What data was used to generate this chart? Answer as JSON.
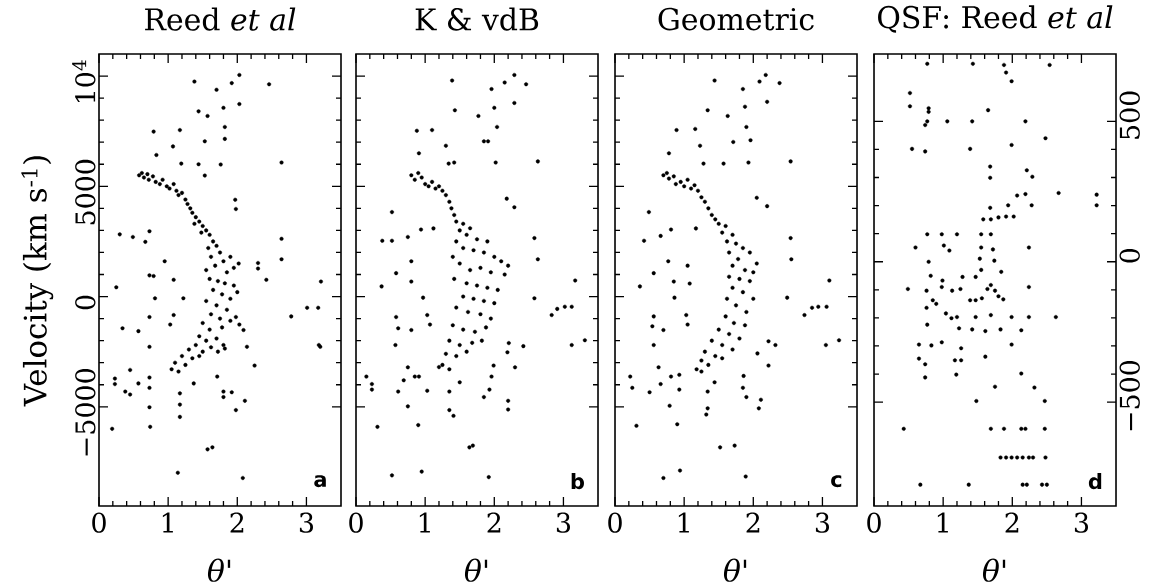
{
  "chart_data": [
    {
      "type": "scatter",
      "title": "Reed *et al*",
      "xlabel": "θ'",
      "ylabel": "Velocity (km s$^{-1}$)",
      "color": "#000000",
      "marker": "circle",
      "xlim": [
        0,
        3.5
      ],
      "xticks": [
        0,
        1,
        2,
        3
      ],
      "ylim": [
        -9500,
        11000
      ],
      "yticks": [
        {
          "value": -5000,
          "label": "−5000"
        },
        0,
        5000,
        {
          "value": 10000,
          "label": "10$^{4}$"
        }
      ],
      "annotations": [
        "a"
      ],
      "x": [
        1.38,
        1.92,
        2.03,
        2.46,
        1.7,
        2.03,
        1.44,
        1.57,
        1.8,
        0.79,
        1.17,
        1.82,
        1.53,
        1.82,
        1.07,
        0.83,
        2.64,
        1.19,
        1.44,
        1.76,
        1.53,
        1.97,
        1.98,
        0.3,
        0.49,
        0.67,
        0.73,
        2.64,
        2.64,
        2.3,
        2.3,
        2.42,
        0.25,
        0.95,
        0.79,
        0.73,
        1.08,
        0.81,
        1.22,
        0.73,
        1.08,
        0.34,
        0.57,
        0.73,
        1.03,
        3.21,
        3.01,
        3.17,
        2.78,
        3.18,
        3.2,
        1.98,
        2.09,
        2.03,
        2.14,
        2.25,
        1.82,
        0.23,
        0.23,
        0.45,
        0.38,
        0.45,
        0.57,
        0.73,
        0.73,
        0.73,
        0.19,
        0.74,
        1.17,
        1.17,
        1.17,
        1.37,
        1.71,
        1.8,
        1.8,
        1.92,
        2.11,
        1.98,
        1.57,
        1.64,
        1.14,
        2.08,
        0.58,
        0.62,
        0.65,
        0.7,
        0.72,
        0.78,
        0.82,
        0.88,
        0.92,
        0.98,
        1.02,
        1.08,
        1.12,
        1.15,
        1.2,
        1.25,
        1.28,
        1.32,
        1.35,
        1.4,
        1.45,
        1.5,
        1.38,
        1.55,
        1.6,
        1.48,
        1.65,
        1.58,
        1.7,
        1.75,
        1.62,
        1.8,
        1.9,
        1.68,
        1.55,
        1.85,
        1.95,
        2.02,
        1.6,
        1.72,
        1.82,
        1.95,
        1.65,
        1.78,
        1.9,
        2.0,
        1.55,
        1.7,
        1.85,
        1.62,
        1.75,
        1.9,
        1.5,
        1.6,
        1.78,
        1.45,
        1.55,
        1.7,
        1.4,
        1.3,
        1.5,
        1.62,
        1.2,
        1.35,
        1.1,
        1.25,
        1.05,
        1.15,
        1.45,
        1.8,
        1.72
      ],
      "values": [
        9750,
        9680,
        10050,
        9630,
        9380,
        8730,
        8400,
        8190,
        8560,
        7480,
        7550,
        7690,
        7040,
        7150,
        6810,
        6420,
        6080,
        6030,
        6000,
        5990,
        5490,
        4390,
        3970,
        2820,
        2700,
        2480,
        2960,
        2620,
        1690,
        1520,
        1270,
        760,
        420,
        1600,
        930,
        960,
        760,
        -80,
        -80,
        -930,
        -840,
        -1440,
        -1570,
        -2280,
        -1270,
        680,
        -510,
        -510,
        -900,
        -2200,
        -2280,
        -930,
        -1520,
        -1270,
        -2280,
        -3130,
        -2360,
        -3720,
        -3970,
        -3330,
        -4310,
        -4440,
        -3940,
        -3670,
        -4140,
        -5020,
        -6000,
        -5910,
        -4390,
        -4900,
        -5460,
        -3940,
        -3630,
        -4310,
        -4560,
        -4340,
        -4730,
        -5150,
        -6930,
        -6840,
        -7990,
        -8230,
        5500,
        5600,
        5400,
        5550,
        5300,
        5450,
        5200,
        5100,
        5300,
        5000,
        4900,
        5100,
        4800,
        4600,
        4700,
        4400,
        4200,
        4000,
        3800,
        3600,
        3400,
        3200,
        3300,
        3000,
        2800,
        2900,
        2500,
        2200,
        2300,
        2000,
        1800,
        1600,
        1800,
        1400,
        1200,
        1100,
        1300,
        1500,
        800,
        700,
        600,
        500,
        300,
        100,
        -100,
        200,
        -200,
        -400,
        -600,
        -800,
        -1000,
        -1100,
        -1200,
        -1500,
        -1400,
        -1800,
        -2000,
        -1900,
        -2200,
        -2400,
        -2500,
        -2300,
        -2700,
        -2800,
        -3000,
        -3100,
        -3300,
        -3400,
        -2700,
        -2200,
        -2500
      ]
    },
    {
      "type": "scatter",
      "title": "K & vdB",
      "xlabel": "θ'",
      "color": "#000000",
      "marker": "circle",
      "xlim": [
        0,
        3.5
      ],
      "xticks": [
        0,
        1,
        2,
        3
      ],
      "ylim": [
        -9500,
        11000
      ],
      "yticks": [
        -5000,
        0,
        5000,
        10000
      ],
      "tick_labels": "x",
      "annotations": [
        "b"
      ],
      "x": [
        1.39,
        2.15,
        2.29,
        2.46,
        1.96,
        2.0,
        2.29,
        1.43,
        1.77,
        2.04,
        0.88,
        1.1,
        1.85,
        1.91,
        1.3,
        0.91,
        1.34,
        1.42,
        2.02,
        2.63,
        2.18,
        2.29,
        0.52,
        0.38,
        0.52,
        0.75,
        0.94,
        1.12,
        2.58,
        2.63,
        0.58,
        0.8,
        0.8,
        0.37,
        0.97,
        2.58,
        3.17,
        2.91,
        3.02,
        3.12,
        2.83,
        3.12,
        3.31,
        0.58,
        0.61,
        0.8,
        0.57,
        1.07,
        1.03,
        2.21,
        2.42,
        2.3,
        2.19,
        0.15,
        0.23,
        0.23,
        0.75,
        0.85,
        0.91,
        0.69,
        0.61,
        0.75,
        1.03,
        1.35,
        1.35,
        1.41,
        1.5,
        1.99,
        1.96,
        1.93,
        1.85,
        2.2,
        2.2,
        0.31,
        0.9,
        1.64,
        1.69,
        0.95,
        1.92,
        0.52,
        0.8,
        0.85,
        0.9,
        0.95,
        1.0,
        1.05,
        1.1,
        1.15,
        1.2,
        1.25,
        1.3,
        1.35,
        1.38,
        1.42,
        1.45,
        1.55,
        1.65,
        1.5,
        1.6,
        1.75,
        1.9,
        1.45,
        1.55,
        1.7,
        1.85,
        2.0,
        2.1,
        2.2,
        1.4,
        1.5,
        1.65,
        1.8,
        1.95,
        2.15,
        1.42,
        1.6,
        1.75,
        1.9,
        2.05,
        1.55,
        1.7,
        1.85,
        2.0,
        1.45,
        1.62,
        1.8,
        1.95,
        1.4,
        1.55,
        1.72,
        1.88,
        1.35,
        1.5,
        1.68,
        1.82,
        1.3,
        1.45,
        1.6,
        1.25,
        1.35,
        1.2
      ],
      "values": [
        9800,
        9710,
        10050,
        9630,
        9410,
        8560,
        8780,
        8450,
        8190,
        7690,
        7520,
        7550,
        7040,
        7040,
        6840,
        6500,
        6030,
        6080,
        6080,
        6130,
        4440,
        4050,
        3830,
        2530,
        2530,
        2700,
        3040,
        3090,
        2650,
        1690,
        1060,
        1600,
        680,
        460,
        -50,
        -80,
        730,
        -560,
        -460,
        -460,
        -840,
        -2200,
        -1980,
        -930,
        -1440,
        -1520,
        -2200,
        -1270,
        -840,
        -2110,
        -2250,
        -3210,
        -2530,
        -3630,
        -3970,
        -4220,
        -3210,
        -3630,
        -3630,
        -3800,
        -4310,
        -4980,
        -4270,
        -4310,
        -5150,
        -5410,
        -3890,
        -3130,
        -3630,
        -4220,
        -4560,
        -4730,
        -5120,
        -5910,
        -5830,
        -6840,
        -6760,
        -7940,
        -8190,
        -8110,
        5500,
        5300,
        5600,
        5400,
        5100,
        5000,
        5200,
        4900,
        5000,
        4800,
        4600,
        4300,
        4000,
        3700,
        3400,
        3300,
        3100,
        3000,
        2800,
        2600,
        2500,
        2500,
        2200,
        2100,
        2000,
        1800,
        1600,
        1400,
        1800,
        1500,
        1200,
        1300,
        1100,
        1000,
        800,
        600,
        500,
        400,
        300,
        0,
        -100,
        -200,
        -300,
        -500,
        -700,
        -800,
        -1000,
        -1300,
        -1500,
        -1600,
        -1400,
        -2000,
        -2200,
        -2100,
        -2000,
        -2600,
        -2700,
        -2500,
        -3100,
        -3300,
        -3200
      ]
    },
    {
      "type": "scatter",
      "title": "Geometric",
      "xlabel": "θ'",
      "color": "#000000",
      "marker": "circle",
      "xlim": [
        0,
        3.5
      ],
      "xticks": [
        0,
        1,
        2,
        3
      ],
      "ylim": [
        -9500,
        11000
      ],
      "yticks": [
        -5000,
        0,
        5000,
        10000
      ],
      "tick_labels": "x",
      "annotations": [
        "c"
      ],
      "x": [
        1.44,
        2.09,
        2.18,
        2.38,
        1.85,
        2.2,
        1.88,
        1.34,
        1.63,
        1.9,
        0.89,
        1.16,
        1.71,
        1.96,
        1.23,
        0.78,
        1.28,
        1.57,
        1.93,
        2.54,
        2.05,
        2.2,
        0.49,
        0.42,
        0.66,
        0.81,
        1.17,
        2.54,
        2.55,
        0.56,
        0.77,
        0.85,
        0.36,
        1.05,
        1.08,
        0.86,
        2.49,
        3.1,
        2.85,
        2.94,
        3.06,
        2.74,
        3.05,
        3.24,
        0.56,
        0.54,
        0.7,
        0.56,
        1.03,
        1.05,
        2.22,
        2.32,
        2.22,
        2.06,
        0.22,
        0.25,
        0.63,
        0.81,
        0.93,
        0.66,
        0.5,
        0.79,
        0.93,
        1.34,
        1.34,
        1.32,
        1.44,
        1.86,
        1.85,
        1.9,
        2.11,
        2.08,
        0.31,
        0.9,
        1.52,
        1.73,
        0.94,
        1.89,
        0.7,
        0.7,
        0.75,
        0.78,
        0.85,
        0.88,
        0.95,
        1.0,
        1.05,
        1.1,
        1.15,
        1.2,
        1.25,
        1.3,
        1.35,
        1.4,
        1.45,
        1.5,
        1.6,
        1.55,
        1.7,
        1.62,
        1.75,
        1.85,
        1.95,
        1.65,
        1.78,
        2.05,
        1.7,
        1.88,
        2.0,
        1.65,
        1.8,
        1.95,
        1.7,
        1.85,
        2.0,
        1.62,
        1.75,
        1.9,
        1.6,
        1.72,
        1.88,
        1.5,
        1.65,
        1.8,
        1.4,
        1.55,
        1.7,
        1.3,
        1.45,
        1.25,
        1.35,
        1.18,
        1.25,
        1.55
      ],
      "values": [
        9800,
        9750,
        10050,
        9680,
        9410,
        8830,
        8610,
        8450,
        8190,
        7690,
        7550,
        7600,
        7010,
        7090,
        6840,
        6500,
        6030,
        6030,
        6080,
        6130,
        4480,
        4100,
        3830,
        2530,
        2750,
        3040,
        3090,
        2650,
        1690,
        1060,
        1600,
        680,
        460,
        1400,
        590,
        -50,
        -50,
        730,
        -510,
        -460,
        -460,
        -840,
        -2200,
        -1980,
        -900,
        -1350,
        -1520,
        -2200,
        -840,
        -1270,
        -2030,
        -2200,
        -3130,
        -2580,
        -3630,
        -4140,
        -3210,
        -3630,
        -3550,
        -3970,
        -4340,
        -4950,
        -4220,
        -4310,
        -5070,
        -5350,
        -3890,
        -3600,
        -4140,
        -4560,
        -4680,
        -5070,
        -5860,
        -5790,
        -6840,
        -6760,
        -7890,
        -8160,
        -8230,
        5500,
        5600,
        5350,
        5450,
        5100,
        5200,
        5000,
        5300,
        4900,
        5050,
        4800,
        4500,
        4300,
        4000,
        3700,
        3500,
        3300,
        3200,
        2900,
        2800,
        2500,
        2400,
        2200,
        2000,
        2000,
        1700,
        1500,
        1400,
        1200,
        1100,
        900,
        800,
        700,
        400,
        200,
        -100,
        -100,
        -400,
        -700,
        -900,
        -1200,
        -1300,
        -1500,
        -1700,
        -1900,
        -2000,
        -2200,
        -2400,
        -2500,
        -2700,
        -2900,
        -3100,
        -3300,
        -3400,
        -2800
      ]
    },
    {
      "type": "scatter",
      "title": "QSF: Reed *et al*",
      "xlabel": "θ'",
      "marker": "circle",
      "xlim": [
        0,
        3.5
      ],
      "xticks": [
        0,
        1,
        2,
        3
      ],
      "y2lim": [
        -870,
        740
      ],
      "y2ticks": [
        {
          "value": -500,
          "label": "−500"
        },
        0,
        500
      ],
      "annotations": [
        "d"
      ],
      "series": [
        {
          "axis": "y2",
          "color": "#000000",
          "x": [
            0.77,
            1.43,
            2.54,
            1.88,
            1.91,
            1.99,
            0.52,
            0.52,
            0.79,
            0.79,
            1.65,
            0.74,
            0.77,
            1.06,
            1.42,
            2.19,
            2.48,
            0.55,
            0.74,
            1.39,
            1.99,
            1.68,
            1.68,
            2.21,
            2.29,
            2.07,
            2.19,
            2.28,
            2.67,
            3.22,
            3.22,
            1.68,
            1.94,
            1.58,
            1.69,
            1.8,
            1.91,
            2.02,
            0.77,
            0.98,
            1.2,
            1.55,
            1.69,
            0.6,
            1.01,
            1.09,
            1.55,
            1.72,
            2.24,
            1.53,
            1.74,
            0.79,
            0.82,
            0.99,
            1.28,
            1.47,
            1.55,
            1.84,
            0.49,
            0.76,
            0.98,
            1.13,
            1.25,
            1.64,
            1.69,
            1.75,
            2.24,
            0.85,
            0.9,
            1.39,
            1.47,
            1.56,
            1.8,
            1.87,
            0.76,
            1.04,
            1.12,
            1.2,
            1.47,
            1.69,
            1.99,
            2.24,
            2.63,
            0.77,
            1.23,
            1.42,
            1.61,
            1.83,
            2.13,
            0.65,
            0.98,
            0.83,
            1.26,
            1.99,
            1.61,
            0.65,
            0.74,
            1.17,
            1.26,
            0.74,
            1.19,
            2.13,
            1.75,
            2.32,
            1.48,
            2.47,
            0.43,
            1.69,
            1.88,
            2.13,
            2.19,
            2.47,
            1.83,
            1.91,
            1.99,
            2.07,
            2.15,
            2.24,
            2.3,
            2.48,
            0.67,
            1.37,
            2.15,
            2.21,
            2.43,
            2.5
          ],
          "values": [
            705,
            705,
            701,
            701,
            674,
            643,
            601,
            554,
            547,
            534,
            540,
            487,
            500,
            500,
            500,
            500,
            440,
            402,
            393,
            402,
            416,
            339,
            299,
            326,
            303,
            236,
            241,
            201,
            245,
            239,
            201,
            192,
            201,
            151,
            151,
            158,
            161,
            161,
            98,
            98,
            98,
            98,
            98,
            51,
            58,
            40,
            51,
            44,
            51,
            11,
            4,
            0,
            -50,
            -67,
            -54,
            -54,
            -29,
            -36,
            -97,
            -103,
            -90,
            -103,
            -97,
            -97,
            -83,
            -103,
            -90,
            -137,
            -150,
            -137,
            -137,
            -130,
            -123,
            -134,
            -164,
            -184,
            -201,
            -197,
            -197,
            -190,
            -197,
            -197,
            -197,
            -224,
            -237,
            -241,
            -247,
            -241,
            -244,
            -295,
            -287,
            -298,
            -308,
            -295,
            -338,
            -345,
            -365,
            -351,
            -351,
            -412,
            -402,
            -398,
            -445,
            -448,
            -496,
            -496,
            -595,
            -595,
            -595,
            -595,
            -595,
            -595,
            -697,
            -697,
            -697,
            -697,
            -697,
            -697,
            -697,
            -697,
            -794,
            -794,
            -794,
            -794,
            -794,
            -794
          ]
        }
      ]
    }
  ]
}
